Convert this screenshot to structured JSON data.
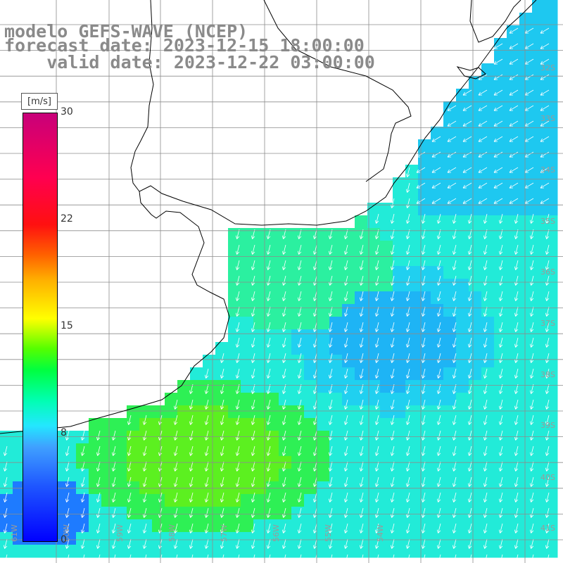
{
  "header": {
    "model": "modelo GEFS-WAVE (NCEP)",
    "forecast": "forecast date: 2023-12-15 18:00:00",
    "valid": "valid date: 2023-12-22 03:00:00"
  },
  "colorbar": {
    "unit": "[m/s]",
    "ticks": [
      "30",
      "22",
      "15",
      "8",
      "0"
    ],
    "tick_values": [
      30,
      22,
      15,
      8,
      0
    ],
    "range": [
      0,
      30
    ],
    "stops": [
      "#0000ff",
      "#3fa0ff",
      "#23e7ff",
      "#00ff40",
      "#ffff00",
      "#ff6000",
      "#ff1010",
      "#c8007a"
    ]
  },
  "map": {
    "lat_labels": [
      "32S",
      "33S",
      "34S",
      "35S",
      "36S",
      "37S",
      "38S",
      "39S",
      "40S",
      "41S"
    ],
    "lon_labels": [
      "61W",
      "60W",
      "59W",
      "58W",
      "57W",
      "56W",
      "55W",
      "54W"
    ],
    "land_color": "#ffffff",
    "grid_color": "#8c8c8c",
    "arrow_color": "#ffffff",
    "dominant_direction": "south-southwest"
  }
}
